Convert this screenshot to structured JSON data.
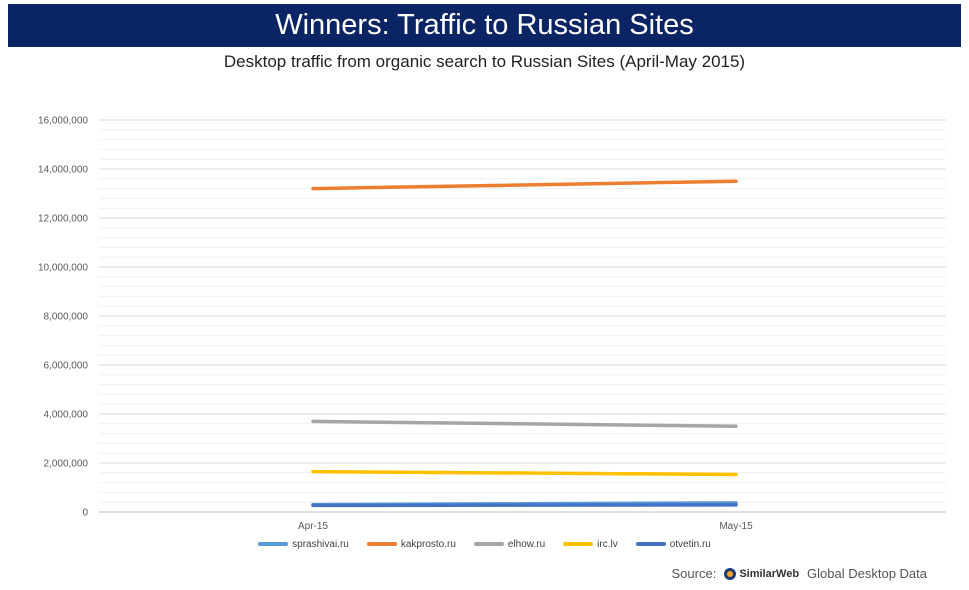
{
  "header": {
    "title": "Winners: Traffic to Russian Sites",
    "subtitle": "Desktop traffic from organic search to Russian Sites (April-May 2015)"
  },
  "chart_data": {
    "type": "line",
    "title": "Desktop traffic from organic search to Russian Sites (April-May 2015)",
    "categories": [
      "Apr-15",
      "May-15"
    ],
    "ylim": [
      0,
      16000000
    ],
    "yticks": [
      0,
      2000000,
      4000000,
      6000000,
      8000000,
      10000000,
      12000000,
      14000000,
      16000000
    ],
    "ytick_labels": [
      "0",
      "2,000,000",
      "4,000,000",
      "6,000,000",
      "8,000,000",
      "10,000,000",
      "12,000,000",
      "14,000,000",
      "16,000,000"
    ],
    "grid": true,
    "legend_position": "bottom",
    "series": [
      {
        "name": "sprashivai.ru",
        "values": [
          300000,
          370000
        ],
        "color": "#5b9bd5"
      },
      {
        "name": "kakprosto.ru",
        "values": [
          13200000,
          13500000
        ],
        "color": "#ed7d31"
      },
      {
        "name": "elhow.ru",
        "values": [
          3700000,
          3500000
        ],
        "color": "#a5a5a5"
      },
      {
        "name": "irc.lv",
        "values": [
          1650000,
          1530000
        ],
        "color": "#ffc000"
      },
      {
        "name": "otvetin.ru",
        "values": [
          270000,
          290000
        ],
        "color": "#4472c4"
      }
    ]
  },
  "footer": {
    "source_label": "Source:",
    "brand": "SimilarWeb",
    "source_text": "Global Desktop Data"
  }
}
